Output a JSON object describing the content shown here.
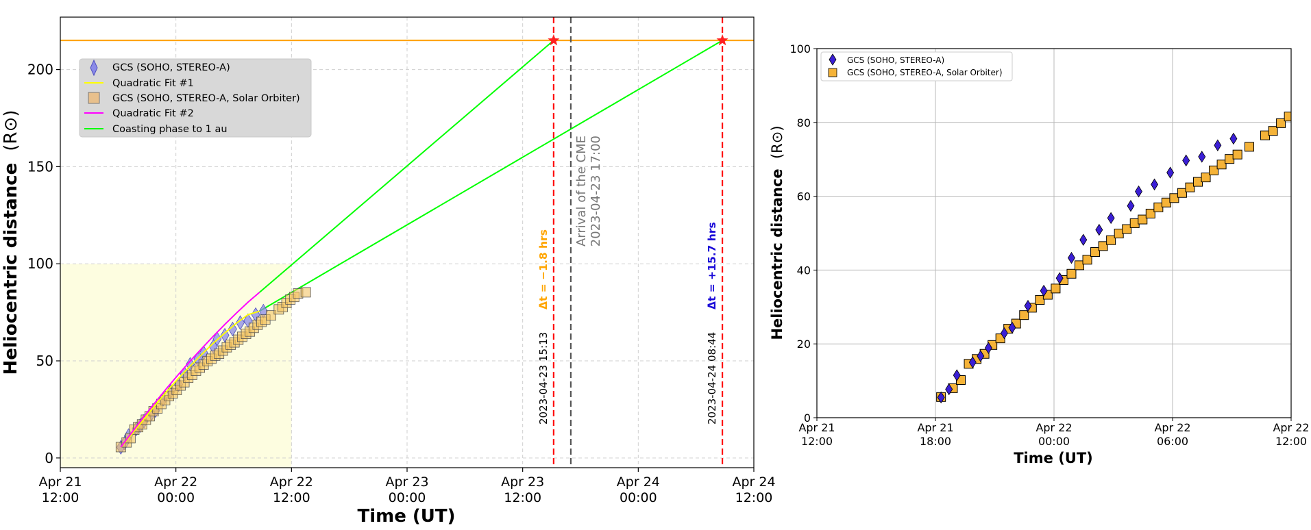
{
  "chart_data": [
    {
      "type": "scatter",
      "title": "",
      "xlabel": "Time (UT)",
      "ylabel": "Heliocentric distance",
      "ylabel_unit": "(R⊙)",
      "time_origin": "2023-04-21 12:00",
      "xlim": [
        "2023-04-21 12:00",
        "2023-04-24 12:00"
      ],
      "ylim": [
        -5,
        227
      ],
      "xticks": [
        {
          "t": "2023-04-21 12:00",
          "line1": "Apr 21",
          "line2": "12:00"
        },
        {
          "t": "2023-04-22 00:00",
          "line1": "Apr 22",
          "line2": "00:00"
        },
        {
          "t": "2023-04-22 12:00",
          "line1": "Apr 22",
          "line2": "12:00"
        },
        {
          "t": "2023-04-23 00:00",
          "line1": "Apr 23",
          "line2": "00:00"
        },
        {
          "t": "2023-04-23 12:00",
          "line1": "Apr 23",
          "line2": "12:00"
        },
        {
          "t": "2023-04-24 00:00",
          "line1": "Apr 24",
          "line2": "00:00"
        },
        {
          "t": "2023-04-24 12:00",
          "line1": "Apr 24",
          "line2": "12:00"
        }
      ],
      "yticks": [
        0,
        50,
        100,
        150,
        200
      ],
      "grid": true,
      "legend_placement": "upper-left",
      "highlight_box": {
        "t_from": "2023-04-21 12:00",
        "t_to": "2023-04-22 12:00",
        "y_from": -5,
        "y_to": 100,
        "color": "#fdfde0"
      },
      "horizontal_line": {
        "y": 215,
        "color": "#ffa500"
      },
      "series": [
        {
          "name": "GCS (SOHO, STEREO-A)",
          "marker": "diamond",
          "color": "#8a8ae8",
          "edge": "#5050c0",
          "points": [
            [
              "2023-04-21 18:17",
              5.5
            ],
            [
              "2023-04-21 18:41",
              7.7
            ],
            [
              "2023-04-21 19:05",
              11.5
            ],
            [
              "2023-04-21 19:53",
              15.0
            ],
            [
              "2023-04-21 20:17",
              16.7
            ],
            [
              "2023-04-21 20:41",
              18.9
            ],
            [
              "2023-04-21 21:29",
              22.9
            ],
            [
              "2023-04-21 21:53",
              24.4
            ],
            [
              "2023-04-21 22:41",
              30.3
            ],
            [
              "2023-04-21 23:29",
              34.4
            ],
            [
              "2023-04-22 00:17",
              37.8
            ],
            [
              "2023-04-22 00:53",
              43.3
            ],
            [
              "2023-04-22 01:29",
              48.2
            ],
            [
              "2023-04-22 02:17",
              50.9
            ],
            [
              "2023-04-22 02:53",
              54.1
            ],
            [
              "2023-04-22 03:53",
              57.4
            ],
            [
              "2023-04-22 04:17",
              61.3
            ],
            [
              "2023-04-22 05:05",
              63.2
            ],
            [
              "2023-04-22 05:53",
              66.4
            ],
            [
              "2023-04-22 06:41",
              69.7
            ],
            [
              "2023-04-22 07:29",
              70.7
            ],
            [
              "2023-04-22 08:17",
              73.8
            ],
            [
              "2023-04-22 09:05",
              75.6
            ]
          ]
        },
        {
          "name": "Quadratic Fit #1",
          "line": true,
          "color": "#ffff00",
          "points": [
            [
              "2023-04-21 18:17",
              5.5
            ],
            [
              "2023-04-21 19:29",
              12.6
            ],
            [
              "2023-04-21 20:41",
              19.9
            ],
            [
              "2023-04-21 21:53",
              27.4
            ],
            [
              "2023-04-21 23:05",
              34.5
            ],
            [
              "2023-04-22 00:17",
              41.1
            ],
            [
              "2023-04-22 01:29",
              47.4
            ],
            [
              "2023-04-22 02:41",
              53.4
            ],
            [
              "2023-04-22 03:53",
              59.1
            ],
            [
              "2023-04-22 05:05",
              64.4
            ],
            [
              "2023-04-22 06:17",
              69.4
            ],
            [
              "2023-04-22 07:29",
              73.8
            ],
            [
              "2023-04-22 08:41",
              75.6
            ]
          ]
        },
        {
          "name": "GCS (SOHO, STEREO-A, Solar Orbiter)",
          "marker": "square",
          "color": "#f2bf5a",
          "edge": "#000000",
          "points": [
            [
              "2023-04-21 18:17",
              5.6
            ],
            [
              "2023-04-21 18:53",
              8.0
            ],
            [
              "2023-04-21 19:17",
              10.2
            ],
            [
              "2023-04-21 19:41",
              14.6
            ],
            [
              "2023-04-21 20:05",
              15.9
            ],
            [
              "2023-04-21 20:29",
              17.3
            ],
            [
              "2023-04-21 20:53",
              19.7
            ],
            [
              "2023-04-21 21:17",
              21.5
            ],
            [
              "2023-04-21 21:41",
              24.1
            ],
            [
              "2023-04-21 22:05",
              25.5
            ],
            [
              "2023-04-21 22:29",
              27.8
            ],
            [
              "2023-04-21 22:53",
              29.8
            ],
            [
              "2023-04-21 23:17",
              31.9
            ],
            [
              "2023-04-21 23:41",
              33.3
            ],
            [
              "2023-04-22 00:05",
              35.0
            ],
            [
              "2023-04-22 00:29",
              37.3
            ],
            [
              "2023-04-22 00:53",
              39.0
            ],
            [
              "2023-04-22 01:17",
              41.3
            ],
            [
              "2023-04-22 01:41",
              42.8
            ],
            [
              "2023-04-22 02:05",
              44.9
            ],
            [
              "2023-04-22 02:29",
              46.5
            ],
            [
              "2023-04-22 02:53",
              48.1
            ],
            [
              "2023-04-22 03:17",
              49.9
            ],
            [
              "2023-04-22 03:41",
              51.1
            ],
            [
              "2023-04-22 04:05",
              52.7
            ],
            [
              "2023-04-22 04:29",
              53.7
            ],
            [
              "2023-04-22 04:53",
              55.3
            ],
            [
              "2023-04-22 05:17",
              57.0
            ],
            [
              "2023-04-22 05:41",
              58.3
            ],
            [
              "2023-04-22 06:05",
              59.5
            ],
            [
              "2023-04-22 06:29",
              60.9
            ],
            [
              "2023-04-22 06:53",
              62.4
            ],
            [
              "2023-04-22 07:17",
              63.9
            ],
            [
              "2023-04-22 07:41",
              65.1
            ],
            [
              "2023-04-22 08:05",
              67.0
            ],
            [
              "2023-04-22 08:29",
              68.6
            ],
            [
              "2023-04-22 08:53",
              70.1
            ],
            [
              "2023-04-22 09:17",
              71.3
            ],
            [
              "2023-04-22 09:53",
              73.4
            ],
            [
              "2023-04-22 10:41",
              76.5
            ],
            [
              "2023-04-22 11:05",
              77.7
            ],
            [
              "2023-04-22 11:29",
              79.8
            ],
            [
              "2023-04-22 11:53",
              81.6
            ],
            [
              "2023-04-22 12:17",
              82.9
            ],
            [
              "2023-04-22 12:41",
              84.7
            ],
            [
              "2023-04-22 13:29",
              85.3
            ]
          ]
        },
        {
          "name": "Quadratic Fit #2",
          "line": true,
          "color": "#ff00ff",
          "points": [
            [
              "2023-04-21 18:17",
              5.6
            ],
            [
              "2023-04-21 19:29",
              13.5
            ],
            [
              "2023-04-21 20:41",
              21.3
            ],
            [
              "2023-04-21 21:53",
              28.8
            ],
            [
              "2023-04-21 23:05",
              36.1
            ],
            [
              "2023-04-22 00:17",
              43.1
            ],
            [
              "2023-04-22 01:29",
              49.9
            ],
            [
              "2023-04-22 02:41",
              56.4
            ],
            [
              "2023-04-22 03:53",
              62.7
            ],
            [
              "2023-04-22 05:05",
              68.8
            ],
            [
              "2023-04-22 06:17",
              74.6
            ],
            [
              "2023-04-22 07:29",
              80.2
            ],
            [
              "2023-04-22 08:41",
              85.3
            ]
          ]
        },
        {
          "name": "Coasting phase to 1 au",
          "line": true,
          "color": "#00ff00",
          "segments": [
            [
              [
                "2023-04-22 08:41",
                85.3
              ],
              [
                "2023-04-23 15:13",
                215
              ]
            ],
            [
              [
                "2023-04-22 08:41",
                75.6
              ],
              [
                "2023-04-24 08:44",
                215
              ]
            ]
          ]
        }
      ],
      "star_markers": [
        {
          "t": "2023-04-23 15:13",
          "y": 215,
          "color": "#ff2020"
        },
        {
          "t": "2023-04-24 08:44",
          "y": 215,
          "color": "#ff2020"
        }
      ],
      "vertical_lines": [
        {
          "t": "2023-04-23 15:13",
          "color": "#ff0000",
          "style": "dashed",
          "date_label": "2023-04-23 15:13",
          "dt_label": "Δt = −1.8 hrs",
          "dt_color": "#ffa500"
        },
        {
          "t": "2023-04-23 17:00",
          "color": "#555555",
          "style": "dashed",
          "arrival_label_1": "Arrival of the CME",
          "arrival_label_2": "2023-04-23 17:00"
        },
        {
          "t": "2023-04-24 08:44",
          "color": "#ff0000",
          "style": "dashed",
          "date_label": "2023-04-24 08:44",
          "dt_label": "Δt = +15.7 hrs",
          "dt_color": "#1a0ad8"
        }
      ]
    },
    {
      "type": "scatter",
      "title": "",
      "xlabel": "Time (UT)",
      "ylabel": "Heliocentric distance",
      "ylabel_unit": "(R⊙)",
      "time_origin": "2023-04-21 12:00",
      "xlim": [
        "2023-04-21 12:00",
        "2023-04-22 12:00"
      ],
      "ylim": [
        0,
        100
      ],
      "xticks": [
        {
          "t": "2023-04-21 12:00",
          "line1": "Apr 21",
          "line2": "12:00"
        },
        {
          "t": "2023-04-21 18:00",
          "line1": "Apr 21",
          "line2": "18:00"
        },
        {
          "t": "2023-04-22 00:00",
          "line1": "Apr 22",
          "line2": "00:00"
        },
        {
          "t": "2023-04-22 06:00",
          "line1": "Apr 22",
          "line2": "06:00"
        },
        {
          "t": "2023-04-22 12:00",
          "line1": "Apr 22",
          "line2": "12:00"
        }
      ],
      "yticks": [
        0,
        20,
        40,
        60,
        80,
        100
      ],
      "grid": true,
      "legend_placement": "upper-left",
      "series": [
        {
          "name": "GCS (SOHO, STEREO-A)",
          "marker": "diamond",
          "color": "#3b1fd6",
          "edge": "#000000",
          "ref": 0
        },
        {
          "name": "GCS (SOHO, STEREO-A, Solar Orbiter)",
          "marker": "square",
          "color": "#f5b338",
          "edge": "#000000",
          "ref": 2
        }
      ]
    }
  ]
}
